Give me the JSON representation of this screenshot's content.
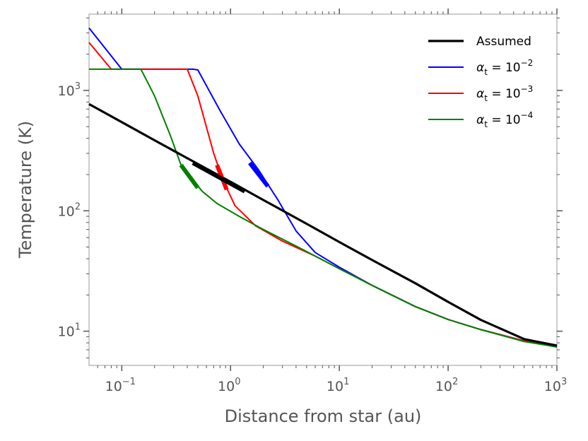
{
  "chart_data": {
    "type": "line",
    "xlabel": "Distance from star (au)",
    "ylabel": "Temperature (K)",
    "xscale": "log",
    "yscale": "log",
    "xlim": [
      0.05,
      1000
    ],
    "ylim": [
      5.2,
      4300
    ],
    "x_ticks": [
      {
        "value": 0.1,
        "base": "10",
        "exp": "−1"
      },
      {
        "value": 1,
        "base": "10",
        "exp": "0"
      },
      {
        "value": 10,
        "base": "10",
        "exp": "1"
      },
      {
        "value": 100,
        "base": "10",
        "exp": "2"
      },
      {
        "value": 1000,
        "base": "10",
        "exp": "3"
      }
    ],
    "y_ticks": [
      {
        "value": 10,
        "base": "10",
        "exp": "1"
      },
      {
        "value": 100,
        "base": "10",
        "exp": "2"
      },
      {
        "value": 1000,
        "base": "10",
        "exp": "3"
      }
    ],
    "legend_position": "top-right",
    "series": [
      {
        "name": "Assumed",
        "legend_label": {
          "prefix": "Assumed",
          "sub": "",
          "sup": ""
        },
        "color": "#000000",
        "linewidth": 3.2,
        "x": [
          0.05,
          0.1,
          0.2,
          0.5,
          1,
          2,
          5,
          10,
          20,
          50,
          100,
          200,
          500,
          800,
          1000
        ],
        "y": [
          770,
          545,
          385,
          245,
          174,
          123,
          78,
          55,
          39,
          25,
          17.5,
          12.4,
          8.6,
          7.9,
          7.6
        ],
        "highlight": {
          "x": [
            0.45,
            1.35
          ],
          "y": [
            250,
            145
          ],
          "linewidth": 6
        }
      },
      {
        "name": "α_t = 10^−2",
        "legend_label": {
          "prefix": "α",
          "sub": "t",
          "eq": " = 10",
          "sup": "−2"
        },
        "color": "#0000ff",
        "linewidth": 2,
        "x": [
          0.05,
          0.1,
          0.45,
          0.5,
          0.8,
          1.2,
          1.8,
          2.7,
          4,
          6,
          10,
          20,
          50,
          100,
          200,
          500,
          1000
        ],
        "y": [
          3300,
          1500,
          1500,
          1480,
          680,
          360,
          220,
          125,
          68,
          45,
          34,
          24,
          16,
          12.5,
          10.3,
          8.3,
          7.4
        ],
        "highlight": {
          "x": [
            1.5,
            2.2
          ],
          "y": [
            250,
            160
          ],
          "linewidth": 6
        }
      },
      {
        "name": "α_t = 10^−3",
        "legend_label": {
          "prefix": "α",
          "sub": "t",
          "eq": " = 10",
          "sup": "−3"
        },
        "color": "#ff0000",
        "linewidth": 2,
        "x": [
          0.05,
          0.08,
          0.4,
          0.5,
          0.7,
          0.85,
          1.1,
          1.7,
          3,
          6,
          10,
          20,
          50,
          100,
          200,
          500,
          1000
        ],
        "y": [
          2500,
          1500,
          1500,
          900,
          300,
          180,
          110,
          75,
          56,
          42,
          33,
          24,
          16,
          12.5,
          10.3,
          8.3,
          7.4
        ],
        "highlight": {
          "x": [
            0.75,
            0.92
          ],
          "y": [
            240,
            150
          ],
          "linewidth": 6
        }
      },
      {
        "name": "α_t = 10^−4",
        "legend_label": {
          "prefix": "α",
          "sub": "t",
          "eq": " = 10",
          "sup": "−4"
        },
        "color": "#008000",
        "linewidth": 2,
        "x": [
          0.05,
          0.15,
          0.2,
          0.28,
          0.35,
          0.45,
          0.55,
          0.75,
          1.2,
          2,
          4,
          10,
          20,
          50,
          100,
          200,
          500,
          1000
        ],
        "y": [
          1500,
          1500,
          900,
          420,
          240,
          180,
          145,
          115,
          90,
          70,
          51,
          33,
          24,
          16,
          12.5,
          10.3,
          8.2,
          7.4
        ],
        "highlight": {
          "x": [
            0.35,
            0.5
          ],
          "y": [
            240,
            155
          ],
          "linewidth": 6
        }
      }
    ]
  }
}
